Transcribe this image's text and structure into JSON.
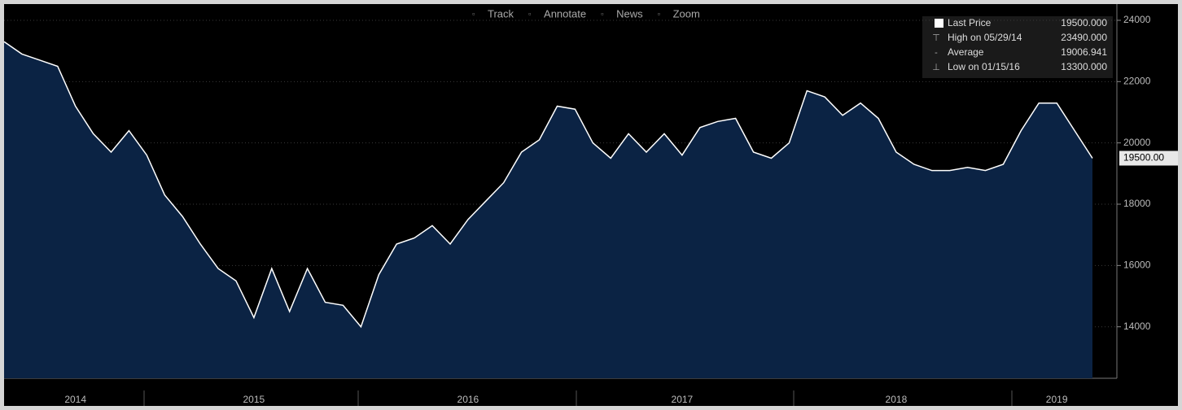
{
  "chart_data": {
    "type": "area",
    "toolbar": [
      "Track",
      "Annotate",
      "News",
      "Zoom"
    ],
    "categories": [
      null,
      null,
      null,
      null,
      "2014",
      null,
      null,
      null,
      null,
      null,
      null,
      null,
      null,
      null,
      "2015",
      null,
      null,
      null,
      null,
      null,
      null,
      null,
      null,
      null,
      null,
      null,
      "2016",
      null,
      null,
      null,
      null,
      null,
      null,
      null,
      null,
      null,
      null,
      null,
      "2017",
      null,
      null,
      null,
      null,
      null,
      null,
      null,
      null,
      null,
      null,
      null,
      "2018",
      null,
      null,
      null,
      null,
      null,
      null,
      null,
      null,
      "2019",
      null,
      null
    ],
    "series": [
      {
        "name": "Last Price",
        "color": "#ffffff",
        "fill": "#0b2344",
        "values": [
          23300,
          22900,
          22700,
          22500,
          21200,
          20300,
          19700,
          20400,
          19600,
          18300,
          17600,
          16700,
          15900,
          15500,
          14300,
          15900,
          14500,
          15900,
          14800,
          14700,
          14000,
          15700,
          16700,
          16900,
          17300,
          16700,
          17500,
          18100,
          18700,
          19700,
          20100,
          21200,
          21100,
          20000,
          19500,
          20300,
          19700,
          20300,
          19600,
          20500,
          20700,
          20800,
          19700,
          19500,
          20000,
          21700,
          21500,
          20900,
          21300,
          20800,
          19700,
          19300,
          19100,
          19100,
          19200,
          19100,
          19300,
          20400,
          21300,
          21300,
          20400,
          19500
        ]
      }
    ],
    "last_value_label": "19500.00",
    "legend": [
      {
        "name": "Last Price",
        "value": "19500.000"
      },
      {
        "name": "High on 05/29/14",
        "value": "23490.000"
      },
      {
        "name": "Average",
        "value": "19006.941"
      },
      {
        "name": "Low on 01/15/16",
        "value": "13300.000"
      }
    ],
    "ylim": [
      12320,
      24530
    ],
    "yticks": [
      14000,
      16000,
      18000,
      20000,
      22000,
      24000
    ],
    "grid": true
  }
}
